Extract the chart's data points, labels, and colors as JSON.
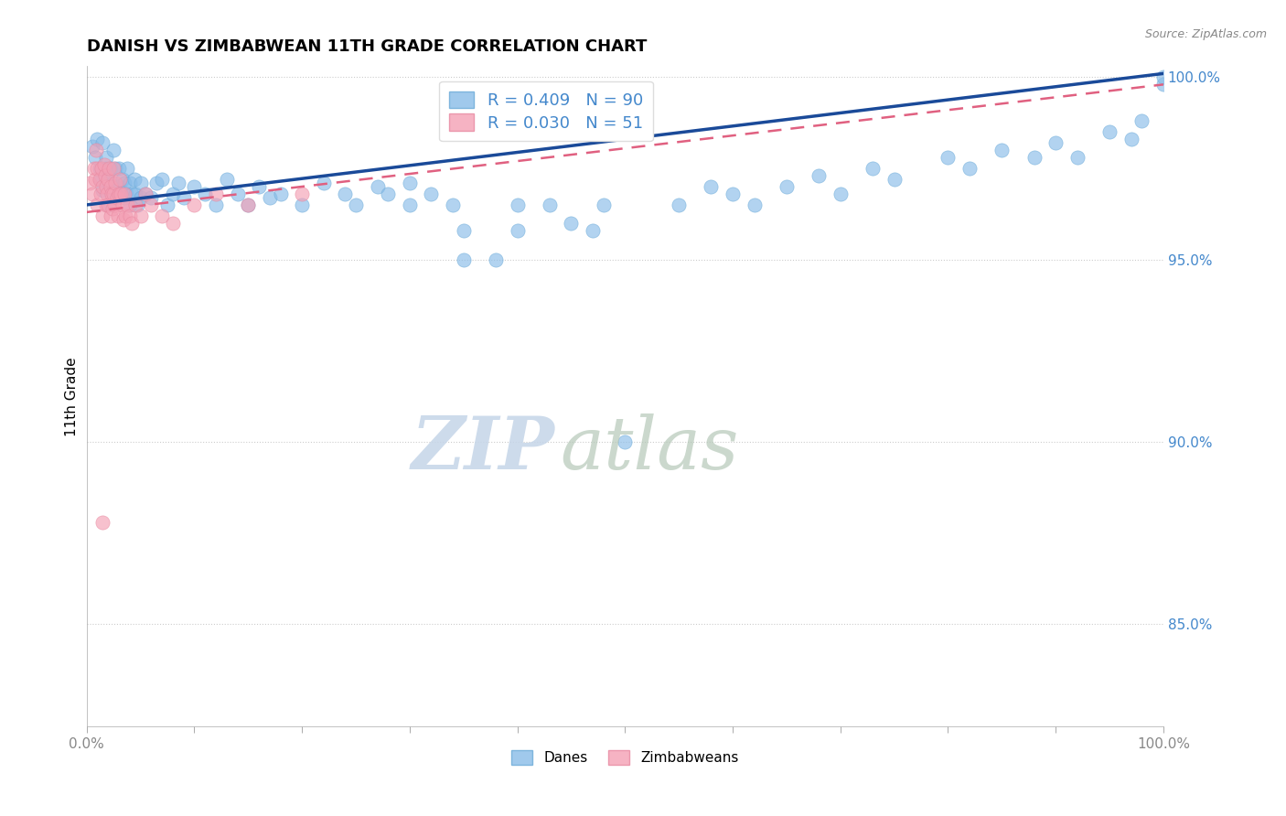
{
  "title": "DANISH VS ZIMBABWEAN 11TH GRADE CORRELATION CHART",
  "source_text": "Source: ZipAtlas.com",
  "ylabel": "11th Grade",
  "danish_color": "#89bce8",
  "danish_edge_color": "#6aaad8",
  "zimbabwean_color": "#f4a0b5",
  "zimbabwean_edge_color": "#e888a0",
  "trend_danish_color": "#1a4a99",
  "trend_zimbabwean_color": "#e06080",
  "legend_danish_label": "R = 0.409   N = 90",
  "legend_zimbabwean_label": "R = 0.030   N = 51",
  "legend_danes_label": "Danes",
  "legend_zimbabweans_label": "Zimbabweans",
  "title_fontsize": 13,
  "ytick_color": "#4488cc",
  "xlim": [
    0.0,
    1.0
  ],
  "ylim": [
    0.822,
    1.003
  ],
  "yticks": [
    0.85,
    0.9,
    0.95,
    1.0
  ],
  "ytick_labels": [
    "85.0%",
    "90.0%",
    "95.0%",
    "100.0%"
  ],
  "danish_trend_start": 0.965,
  "danish_trend_end": 1.001,
  "zimbabwean_trend_start": 0.963,
  "zimbabwean_trend_end": 0.998,
  "danish_x": [
    0.005,
    0.008,
    0.01,
    0.012,
    0.013,
    0.015,
    0.015,
    0.017,
    0.018,
    0.02,
    0.02,
    0.022,
    0.024,
    0.025,
    0.025,
    0.027,
    0.028,
    0.03,
    0.03,
    0.032,
    0.033,
    0.035,
    0.035,
    0.037,
    0.038,
    0.04,
    0.04,
    0.042,
    0.044,
    0.045,
    0.047,
    0.05,
    0.05,
    0.055,
    0.06,
    0.065,
    0.07,
    0.075,
    0.08,
    0.085,
    0.09,
    0.1,
    0.11,
    0.12,
    0.13,
    0.14,
    0.15,
    0.16,
    0.17,
    0.18,
    0.2,
    0.22,
    0.24,
    0.25,
    0.27,
    0.28,
    0.3,
    0.3,
    0.32,
    0.34,
    0.35,
    0.35,
    0.38,
    0.4,
    0.4,
    0.43,
    0.45,
    0.47,
    0.48,
    0.5,
    0.55,
    0.58,
    0.6,
    0.62,
    0.65,
    0.68,
    0.7,
    0.73,
    0.75,
    0.8,
    0.82,
    0.85,
    0.88,
    0.9,
    0.92,
    0.95,
    0.97,
    0.98,
    1.0,
    1.0
  ],
  "danish_y": [
    0.981,
    0.978,
    0.983,
    0.975,
    0.972,
    0.969,
    0.982,
    0.975,
    0.978,
    0.971,
    0.965,
    0.975,
    0.971,
    0.968,
    0.98,
    0.975,
    0.968,
    0.975,
    0.97,
    0.968,
    0.972,
    0.971,
    0.967,
    0.968,
    0.975,
    0.971,
    0.965,
    0.968,
    0.972,
    0.968,
    0.965,
    0.971,
    0.967,
    0.968,
    0.967,
    0.971,
    0.972,
    0.965,
    0.968,
    0.971,
    0.967,
    0.97,
    0.968,
    0.965,
    0.972,
    0.968,
    0.965,
    0.97,
    0.967,
    0.968,
    0.965,
    0.971,
    0.968,
    0.965,
    0.97,
    0.968,
    0.965,
    0.971,
    0.968,
    0.965,
    0.95,
    0.958,
    0.95,
    0.965,
    0.958,
    0.965,
    0.96,
    0.958,
    0.965,
    0.9,
    0.965,
    0.97,
    0.968,
    0.965,
    0.97,
    0.973,
    0.968,
    0.975,
    0.972,
    0.978,
    0.975,
    0.98,
    0.978,
    0.982,
    0.978,
    0.985,
    0.983,
    0.988,
    0.998,
    1.0
  ],
  "zimbabwean_x": [
    0.003,
    0.005,
    0.007,
    0.008,
    0.009,
    0.01,
    0.01,
    0.012,
    0.013,
    0.014,
    0.015,
    0.015,
    0.016,
    0.017,
    0.018,
    0.018,
    0.019,
    0.02,
    0.02,
    0.021,
    0.022,
    0.022,
    0.023,
    0.024,
    0.025,
    0.025,
    0.026,
    0.027,
    0.028,
    0.029,
    0.03,
    0.031,
    0.032,
    0.033,
    0.034,
    0.035,
    0.036,
    0.038,
    0.04,
    0.042,
    0.045,
    0.05,
    0.055,
    0.06,
    0.07,
    0.08,
    0.1,
    0.12,
    0.15,
    0.2,
    0.015
  ],
  "zimbabwean_y": [
    0.971,
    0.968,
    0.975,
    0.972,
    0.98,
    0.975,
    0.965,
    0.972,
    0.968,
    0.975,
    0.97,
    0.962,
    0.976,
    0.973,
    0.97,
    0.965,
    0.968,
    0.972,
    0.965,
    0.975,
    0.97,
    0.962,
    0.968,
    0.964,
    0.975,
    0.968,
    0.965,
    0.971,
    0.967,
    0.962,
    0.968,
    0.972,
    0.968,
    0.965,
    0.961,
    0.968,
    0.962,
    0.965,
    0.962,
    0.96,
    0.965,
    0.962,
    0.968,
    0.965,
    0.962,
    0.96,
    0.965,
    0.968,
    0.965,
    0.968,
    0.878
  ],
  "dot_size_danish": 120,
  "dot_size_zimbabwean": 120
}
